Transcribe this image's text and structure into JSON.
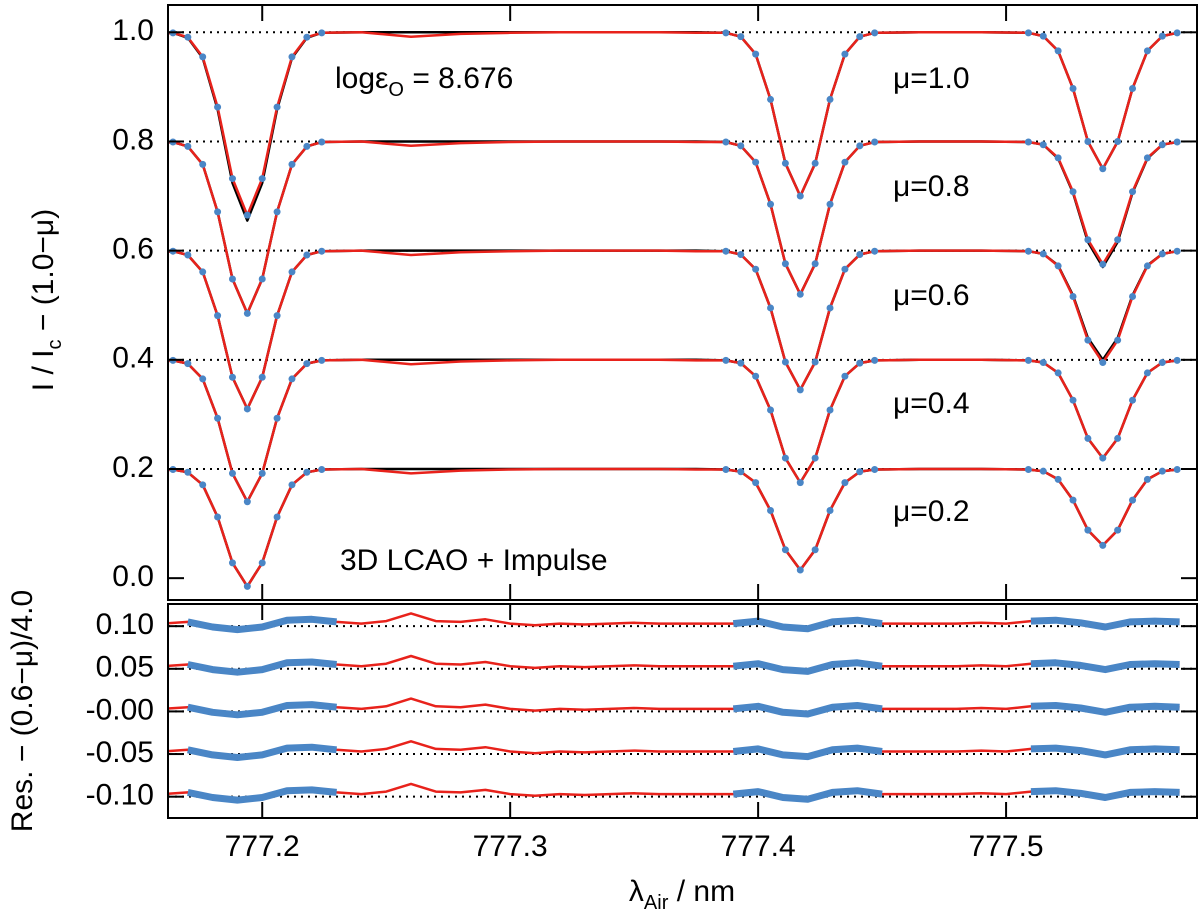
{
  "chart_data": [
    {
      "type": "line",
      "ylabel": {
        "main": "I / I",
        "sub": "c",
        "rest": " − (1.0−μ)"
      },
      "annotations": [
        {
          "main": "logε",
          "sub": "O",
          "rest": " = 8.676"
        },
        {
          "text": "3D LCAO + Impulse"
        }
      ],
      "xlim": [
        777.162,
        777.577
      ],
      "ylim": [
        -0.04,
        1.05
      ],
      "yticks": [
        {
          "value": 0.0,
          "label": "0.0"
        },
        {
          "value": 0.2,
          "label": "0.2"
        },
        {
          "value": 0.4,
          "label": "0.4"
        },
        {
          "value": 0.6,
          "label": "0.6"
        },
        {
          "value": 0.8,
          "label": "0.8"
        },
        {
          "value": 1.0,
          "label": "1.0"
        }
      ],
      "hlines": [
        1.0,
        0.8,
        0.6,
        0.4,
        0.2
      ],
      "model_color": "#000000",
      "observed_color": "#e8221b",
      "fit_color": "#4a86c6",
      "fit_windows": [
        [
          777.164,
          777.224
        ],
        [
          777.387,
          777.447
        ],
        [
          777.509,
          777.569
        ]
      ],
      "x": [
        777.16,
        777.164,
        777.17,
        777.176,
        777.182,
        777.188,
        777.194,
        777.2,
        777.206,
        777.212,
        777.218,
        777.224,
        777.24,
        777.26,
        777.28,
        777.3,
        777.32,
        777.34,
        777.36,
        777.375,
        777.387,
        777.393,
        777.399,
        777.405,
        777.411,
        777.417,
        777.423,
        777.429,
        777.435,
        777.441,
        777.447,
        777.465,
        777.49,
        777.509,
        777.515,
        777.521,
        777.527,
        777.533,
        777.539,
        777.545,
        777.551,
        777.557,
        777.563,
        777.569
      ],
      "profiles": [
        {
          "label": "μ=1.0",
          "observed": [
            0.997,
            0.999,
            0.991,
            0.955,
            0.863,
            0.732,
            0.665,
            0.732,
            0.863,
            0.955,
            0.991,
            0.999,
            1.0,
            0.992,
            0.997,
            0.999,
            1.0,
            1.0,
            1.0,
            0.999,
            0.999,
            0.992,
            0.96,
            0.877,
            0.76,
            0.7,
            0.76,
            0.877,
            0.96,
            0.992,
            0.999,
            1.0,
            1.0,
            0.999,
            0.993,
            0.966,
            0.897,
            0.8,
            0.75,
            0.8,
            0.897,
            0.966,
            0.993,
            0.999
          ],
          "model": [
            0.997,
            0.999,
            0.99,
            0.953,
            0.859,
            0.724,
            0.655,
            0.724,
            0.859,
            0.953,
            0.99,
            0.999,
            1.0,
            1.0,
            1.0,
            1.0,
            1.0,
            1.0,
            1.0,
            1.0,
            0.999,
            0.992,
            0.96,
            0.877,
            0.76,
            0.7,
            0.76,
            0.877,
            0.96,
            0.992,
            0.999,
            1.0,
            1.0,
            0.999,
            0.993,
            0.966,
            0.897,
            0.8,
            0.75,
            0.8,
            0.897,
            0.966,
            0.993,
            0.999
          ]
        },
        {
          "label": "μ=0.8",
          "observed": [
            0.797,
            0.799,
            0.791,
            0.758,
            0.671,
            0.548,
            0.485,
            0.548,
            0.671,
            0.758,
            0.791,
            0.799,
            0.8,
            0.792,
            0.797,
            0.799,
            0.8,
            0.8,
            0.8,
            0.799,
            0.799,
            0.792,
            0.762,
            0.685,
            0.576,
            0.52,
            0.576,
            0.685,
            0.762,
            0.792,
            0.799,
            0.8,
            0.8,
            0.799,
            0.794,
            0.77,
            0.708,
            0.62,
            0.575,
            0.62,
            0.708,
            0.77,
            0.794,
            0.799
          ],
          "model": [
            0.797,
            0.799,
            0.791,
            0.758,
            0.671,
            0.548,
            0.485,
            0.548,
            0.671,
            0.758,
            0.791,
            0.799,
            0.8,
            0.8,
            0.8,
            0.8,
            0.8,
            0.8,
            0.8,
            0.8,
            0.799,
            0.792,
            0.762,
            0.685,
            0.576,
            0.52,
            0.576,
            0.685,
            0.762,
            0.792,
            0.799,
            0.8,
            0.8,
            0.799,
            0.794,
            0.769,
            0.706,
            0.616,
            0.57,
            0.616,
            0.706,
            0.769,
            0.794,
            0.799
          ]
        },
        {
          "label": "μ=0.6",
          "observed": [
            0.597,
            0.599,
            0.592,
            0.561,
            0.481,
            0.368,
            0.31,
            0.368,
            0.481,
            0.561,
            0.592,
            0.599,
            0.6,
            0.592,
            0.597,
            0.599,
            0.6,
            0.6,
            0.6,
            0.599,
            0.599,
            0.593,
            0.566,
            0.495,
            0.396,
            0.345,
            0.396,
            0.495,
            0.566,
            0.593,
            0.599,
            0.6,
            0.6,
            0.599,
            0.594,
            0.572,
            0.516,
            0.436,
            0.395,
            0.436,
            0.516,
            0.572,
            0.594,
            0.599
          ],
          "model": [
            0.597,
            0.599,
            0.592,
            0.561,
            0.481,
            0.368,
            0.31,
            0.368,
            0.481,
            0.561,
            0.592,
            0.599,
            0.6,
            0.6,
            0.6,
            0.6,
            0.6,
            0.6,
            0.6,
            0.6,
            0.599,
            0.593,
            0.566,
            0.495,
            0.396,
            0.345,
            0.396,
            0.495,
            0.566,
            0.593,
            0.599,
            0.6,
            0.6,
            0.599,
            0.594,
            0.573,
            0.518,
            0.44,
            0.4,
            0.44,
            0.518,
            0.573,
            0.594,
            0.599
          ]
        },
        {
          "label": "μ=0.4",
          "observed": [
            0.397,
            0.399,
            0.393,
            0.365,
            0.293,
            0.192,
            0.14,
            0.192,
            0.293,
            0.365,
            0.393,
            0.399,
            0.4,
            0.392,
            0.397,
            0.399,
            0.4,
            0.4,
            0.4,
            0.399,
            0.399,
            0.394,
            0.37,
            0.308,
            0.22,
            0.175,
            0.22,
            0.308,
            0.37,
            0.394,
            0.399,
            0.4,
            0.4,
            0.399,
            0.395,
            0.376,
            0.326,
            0.256,
            0.22,
            0.256,
            0.326,
            0.376,
            0.395,
            0.399
          ],
          "model": [
            0.397,
            0.399,
            0.393,
            0.365,
            0.293,
            0.192,
            0.14,
            0.192,
            0.293,
            0.365,
            0.393,
            0.399,
            0.4,
            0.4,
            0.4,
            0.4,
            0.4,
            0.4,
            0.4,
            0.4,
            0.399,
            0.394,
            0.37,
            0.308,
            0.22,
            0.175,
            0.22,
            0.308,
            0.37,
            0.394,
            0.399,
            0.4,
            0.4,
            0.399,
            0.395,
            0.376,
            0.326,
            0.256,
            0.22,
            0.256,
            0.326,
            0.376,
            0.395,
            0.399
          ]
        },
        {
          "label": "μ=0.2",
          "observed": [
            0.197,
            0.199,
            0.194,
            0.171,
            0.112,
            0.028,
            -0.015,
            0.028,
            0.112,
            0.171,
            0.194,
            0.199,
            0.2,
            0.192,
            0.197,
            0.199,
            0.2,
            0.2,
            0.2,
            0.199,
            0.199,
            0.195,
            0.175,
            0.124,
            0.052,
            0.015,
            0.052,
            0.124,
            0.175,
            0.195,
            0.199,
            0.2,
            0.2,
            0.199,
            0.196,
            0.181,
            0.143,
            0.088,
            0.06,
            0.088,
            0.143,
            0.181,
            0.196,
            0.199
          ],
          "model": [
            0.197,
            0.199,
            0.194,
            0.171,
            0.112,
            0.028,
            -0.015,
            0.028,
            0.112,
            0.171,
            0.194,
            0.199,
            0.2,
            0.2,
            0.2,
            0.2,
            0.2,
            0.2,
            0.2,
            0.2,
            0.199,
            0.195,
            0.175,
            0.124,
            0.052,
            0.015,
            0.052,
            0.124,
            0.175,
            0.195,
            0.199,
            0.2,
            0.2,
            0.199,
            0.196,
            0.181,
            0.143,
            0.088,
            0.06,
            0.088,
            0.143,
            0.181,
            0.196,
            0.199
          ]
        }
      ]
    },
    {
      "type": "residual",
      "ylabel": "Res. − (0.6−μ)/4.0",
      "xlabel": {
        "main": "λ",
        "sub": "Air",
        "rest": " / nm"
      },
      "xlim": [
        777.162,
        777.577
      ],
      "ylim": [
        -0.125,
        0.126
      ],
      "xticks": [
        777.2,
        777.3,
        777.4,
        777.5
      ],
      "yticks": [
        {
          "value": -0.1,
          "label": "-0.10"
        },
        {
          "value": -0.05,
          "label": "-0.05"
        },
        {
          "value": 0.0,
          "label": "-0.00"
        },
        {
          "value": 0.05,
          "label": "0.05"
        },
        {
          "value": 0.1,
          "label": "0.10"
        }
      ],
      "observed_color": "#e8221b",
      "fit_color": "#4a86c6",
      "fit_windows": [
        [
          777.17,
          777.23
        ],
        [
          777.39,
          777.45
        ],
        [
          777.51,
          777.57
        ]
      ],
      "x": [
        777.16,
        777.17,
        777.18,
        777.19,
        777.2,
        777.21,
        777.22,
        777.23,
        777.24,
        777.25,
        777.26,
        777.27,
        777.28,
        777.29,
        777.3,
        777.31,
        777.32,
        777.33,
        777.34,
        777.35,
        777.36,
        777.37,
        777.38,
        777.39,
        777.4,
        777.41,
        777.42,
        777.43,
        777.44,
        777.45,
        777.46,
        777.47,
        777.48,
        777.49,
        777.5,
        777.51,
        777.52,
        777.53,
        777.54,
        777.55,
        777.56,
        777.57
      ],
      "residuals": [
        [
          0.103,
          0.105,
          0.099,
          0.096,
          0.099,
          0.107,
          0.108,
          0.105,
          0.103,
          0.106,
          0.115,
          0.106,
          0.105,
          0.108,
          0.103,
          0.101,
          0.103,
          0.102,
          0.103,
          0.104,
          0.103,
          0.103,
          0.103,
          0.103,
          0.106,
          0.099,
          0.097,
          0.105,
          0.107,
          0.103,
          0.103,
          0.103,
          0.103,
          0.104,
          0.103,
          0.106,
          0.107,
          0.104,
          0.099,
          0.105,
          0.106,
          0.105
        ],
        [
          0.053,
          0.055,
          0.049,
          0.046,
          0.049,
          0.057,
          0.058,
          0.055,
          0.053,
          0.056,
          0.065,
          0.056,
          0.055,
          0.058,
          0.053,
          0.051,
          0.053,
          0.052,
          0.053,
          0.054,
          0.053,
          0.053,
          0.053,
          0.053,
          0.056,
          0.049,
          0.047,
          0.055,
          0.057,
          0.053,
          0.053,
          0.053,
          0.053,
          0.054,
          0.053,
          0.056,
          0.057,
          0.054,
          0.049,
          0.055,
          0.056,
          0.055
        ],
        [
          0.003,
          0.005,
          -0.001,
          -0.004,
          -0.001,
          0.007,
          0.008,
          0.005,
          0.003,
          0.006,
          0.015,
          0.006,
          0.005,
          0.008,
          0.003,
          0.001,
          0.003,
          0.002,
          0.003,
          0.004,
          0.003,
          0.003,
          0.003,
          0.003,
          0.006,
          -0.001,
          -0.003,
          0.005,
          0.007,
          0.003,
          0.003,
          0.003,
          0.003,
          0.004,
          0.003,
          0.006,
          0.007,
          0.004,
          -0.001,
          0.005,
          0.006,
          0.005
        ],
        [
          -0.047,
          -0.045,
          -0.051,
          -0.054,
          -0.051,
          -0.043,
          -0.042,
          -0.045,
          -0.047,
          -0.044,
          -0.035,
          -0.044,
          -0.045,
          -0.042,
          -0.047,
          -0.049,
          -0.047,
          -0.048,
          -0.047,
          -0.046,
          -0.047,
          -0.047,
          -0.047,
          -0.047,
          -0.044,
          -0.051,
          -0.053,
          -0.045,
          -0.043,
          -0.047,
          -0.047,
          -0.047,
          -0.047,
          -0.046,
          -0.047,
          -0.044,
          -0.043,
          -0.046,
          -0.051,
          -0.045,
          -0.044,
          -0.045
        ],
        [
          -0.097,
          -0.095,
          -0.101,
          -0.104,
          -0.101,
          -0.093,
          -0.092,
          -0.095,
          -0.097,
          -0.094,
          -0.085,
          -0.094,
          -0.095,
          -0.092,
          -0.097,
          -0.099,
          -0.097,
          -0.098,
          -0.097,
          -0.096,
          -0.097,
          -0.097,
          -0.097,
          -0.097,
          -0.094,
          -0.101,
          -0.103,
          -0.095,
          -0.093,
          -0.097,
          -0.097,
          -0.097,
          -0.097,
          -0.096,
          -0.097,
          -0.094,
          -0.093,
          -0.096,
          -0.101,
          -0.095,
          -0.094,
          -0.095
        ]
      ]
    }
  ]
}
